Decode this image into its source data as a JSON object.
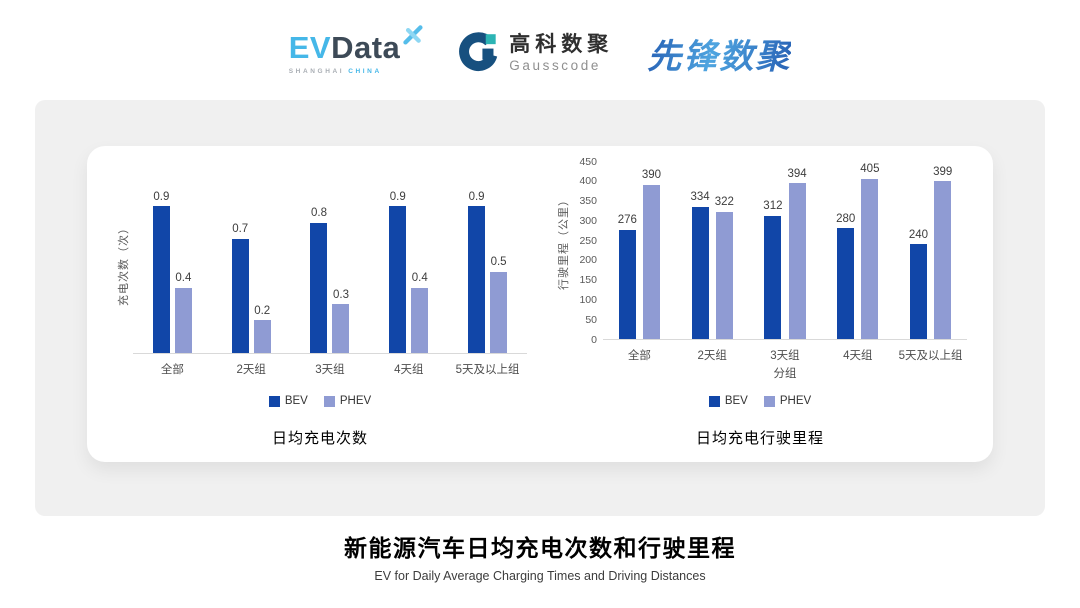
{
  "header": {
    "evdata_logo": {
      "ev": "EV",
      "data": "Data",
      "shanghai": "SHANGHAI",
      "china": "CHINA",
      "star_icon": "propeller-x-icon"
    },
    "gausscode_logo": {
      "name_cn": "高科数聚",
      "name_en": "Gausscode",
      "mark_icon": "g-mark-icon"
    },
    "pioneer_logo": {
      "text": "先锋数聚"
    }
  },
  "colors": {
    "bev": "#1146A8",
    "phev": "#8F9BD3",
    "evdata_blue": "#45B7E8",
    "evdata_dark": "#3D4A57",
    "gausscode_blue": "#17507F",
    "gausscode_teal": "#2CB4B4",
    "pioneer_blue": "#2F7AC6",
    "panel_gray": "#F0F0F0"
  },
  "chart_data": [
    {
      "type": "bar",
      "title": "日均充电次数",
      "ylabel": "充电次数（次）",
      "xlabel": "",
      "categories": [
        "全部",
        "2天组",
        "3天组",
        "4天组",
        "5天及以上组"
      ],
      "series": [
        {
          "name": "BEV",
          "color": "#1146A8",
          "values": [
            0.9,
            0.7,
            0.8,
            0.9,
            0.9
          ]
        },
        {
          "name": "PHEV",
          "color": "#8F9BD3",
          "values": [
            0.4,
            0.2,
            0.3,
            0.4,
            0.5
          ]
        }
      ],
      "ylim": [
        0,
        1.0
      ],
      "grid": false,
      "legend_position": "bottom",
      "value_labels": true
    },
    {
      "type": "bar",
      "title": "日均充电行驶里程",
      "ylabel": "行驶里程（公里）",
      "xlabel": "分组",
      "categories": [
        "全部",
        "2天组",
        "3天组",
        "4天组",
        "5天及以上组"
      ],
      "series": [
        {
          "name": "BEV",
          "color": "#1146A8",
          "values": [
            276,
            334,
            312,
            280,
            240
          ]
        },
        {
          "name": "PHEV",
          "color": "#8F9BD3",
          "values": [
            390,
            322,
            394,
            405,
            399
          ]
        }
      ],
      "ylim": [
        0,
        450
      ],
      "yticks": [
        0,
        50,
        100,
        150,
        200,
        250,
        300,
        350,
        400,
        450
      ],
      "grid": false,
      "legend_position": "bottom",
      "value_labels": true
    }
  ],
  "footer": {
    "title_cn": "新能源汽车日均充电次数和行驶里程",
    "subtitle_en": "EV for Daily Average Charging Times and Driving Distances"
  }
}
